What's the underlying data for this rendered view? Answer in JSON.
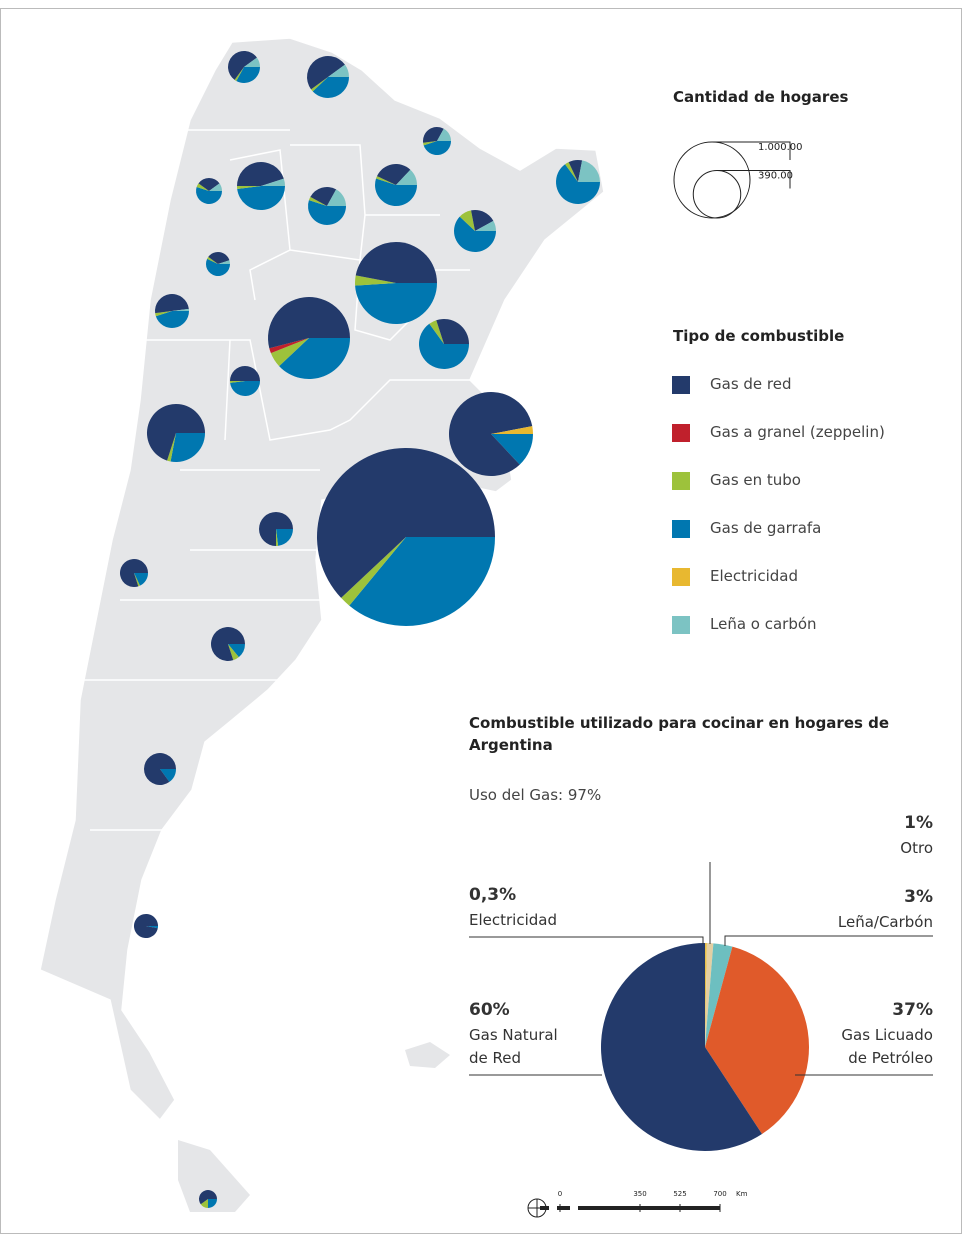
{
  "size_legend": {
    "title": "Cantidad de hogares",
    "circles": [
      {
        "value": 1000,
        "label": "1.000.00"
      },
      {
        "value": 390,
        "label": "390.00"
      }
    ]
  },
  "fuel_legend": {
    "title": "Tipo de  combustible",
    "items": [
      {
        "name": "Gas de red",
        "color": "#233a6b"
      },
      {
        "name": "Gas a granel (zeppelin)",
        "color": "#c0202c"
      },
      {
        "name": "Gas en tubo",
        "color": "#9dc23b"
      },
      {
        "name": "Gas de garrafa",
        "color": "#0077b0"
      },
      {
        "name": "Electricidad",
        "color": "#e8b830"
      },
      {
        "name": "Leña o carbón",
        "color": "#7cc3c3"
      }
    ]
  },
  "provinces": [
    {
      "size": 177,
      "values": [
        55,
        0,
        2,
        33,
        0,
        10
      ]
    },
    {
      "size": 305,
      "values": [
        50,
        0,
        2,
        38,
        0,
        10
      ]
    },
    {
      "size": 136,
      "values": [
        35,
        0,
        3,
        45,
        0,
        17
      ]
    },
    {
      "size": 335,
      "values": [
        10,
        0,
        3,
        65,
        0,
        22
      ]
    },
    {
      "size": 117,
      "values": [
        30,
        0,
        5,
        55,
        0,
        10
      ]
    },
    {
      "size": 399,
      "values": [
        45,
        0,
        2,
        48,
        0,
        5
      ]
    },
    {
      "size": 250,
      "values": [
        25,
        0,
        3,
        55,
        0,
        17
      ]
    },
    {
      "size": 305,
      "values": [
        30,
        0,
        2,
        55,
        0,
        13
      ]
    },
    {
      "size": 305,
      "values": [
        20,
        0,
        10,
        62,
        0,
        8
      ]
    },
    {
      "size": 100,
      "values": [
        35,
        0,
        3,
        57,
        0,
        5
      ]
    },
    {
      "size": 1164,
      "values": [
        47,
        0,
        4,
        49,
        0,
        0
      ]
    },
    {
      "size": 200,
      "values": [
        50,
        0,
        3,
        45,
        0,
        2
      ]
    },
    {
      "size": 1164,
      "values": [
        54,
        2,
        6,
        38,
        0,
        0
      ]
    },
    {
      "size": 433,
      "values": [
        30,
        0,
        5,
        65,
        0,
        0
      ]
    },
    {
      "size": 156,
      "values": [
        50,
        0,
        2,
        48,
        0,
        0
      ]
    },
    {
      "size": 1222,
      "values": [
        84,
        0,
        0,
        13,
        3,
        0
      ]
    },
    {
      "size": 583,
      "values": [
        70,
        0,
        2,
        28,
        0,
        0
      ]
    },
    {
      "size": 5486,
      "values": [
        62,
        0,
        2,
        36,
        0,
        0
      ]
    },
    {
      "size": 200,
      "values": [
        75,
        0,
        2,
        23,
        0,
        0
      ]
    },
    {
      "size": 136,
      "values": [
        80,
        0,
        2,
        18,
        0,
        0
      ]
    },
    {
      "size": 200,
      "values": [
        80,
        0,
        6,
        14,
        0,
        0
      ]
    },
    {
      "size": 177,
      "values": [
        85,
        0,
        0,
        15,
        0,
        0
      ]
    },
    {
      "size": 100,
      "values": [
        97,
        0,
        0,
        3,
        0,
        0
      ]
    },
    {
      "size": 56,
      "values": [
        60,
        0,
        15,
        25,
        0,
        0
      ]
    }
  ],
  "chart_data": {
    "type": "pie",
    "title": "Combustible utilizado para cocinar en hogares de Argentina",
    "subtitle": "Uso del Gas: 97%",
    "categories": [
      "Electricidad",
      "Otro",
      "Leña/Carbón",
      "Gas Licuado de Petróleo",
      "Gas Natural de Red"
    ],
    "values": [
      0.3,
      1,
      3,
      37,
      60
    ],
    "value_labels": [
      "0,3%",
      "1%",
      "3%",
      "37%",
      "60%"
    ],
    "colors": [
      "#e8c04a",
      "#e3cfa3",
      "#6dbfc0",
      "#e05a2a",
      "#233a6b"
    ]
  },
  "scale_bar": {
    "ticks": [
      0,
      350,
      525,
      700
    ],
    "unit": "Km"
  }
}
